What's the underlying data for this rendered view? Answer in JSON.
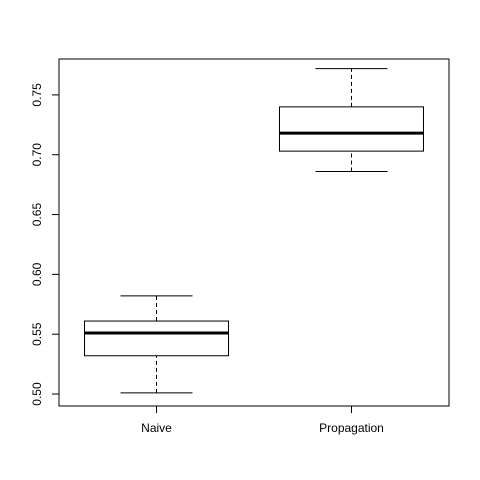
{
  "chart_data": {
    "type": "boxplot",
    "title": "",
    "xlabel": "",
    "ylabel": "",
    "categories": [
      "Naive",
      "Propagation"
    ],
    "boxes": [
      {
        "category": "Naive",
        "whisker_low": 0.501,
        "q1": 0.532,
        "median": 0.551,
        "q3": 0.561,
        "whisker_high": 0.582
      },
      {
        "category": "Propagation",
        "whisker_low": 0.686,
        "q1": 0.703,
        "median": 0.718,
        "q3": 0.74,
        "whisker_high": 0.772
      }
    ],
    "ylim": [
      0.49,
      0.78
    ],
    "y_ticks": [
      0.5,
      0.55,
      0.6,
      0.65,
      0.7,
      0.75
    ],
    "y_tick_labels": [
      "0.50",
      "0.55",
      "0.60",
      "0.65",
      "0.70",
      "0.75"
    ],
    "grid": false,
    "colors": {
      "box_fill": "#ffffff",
      "stroke": "#000000"
    }
  }
}
